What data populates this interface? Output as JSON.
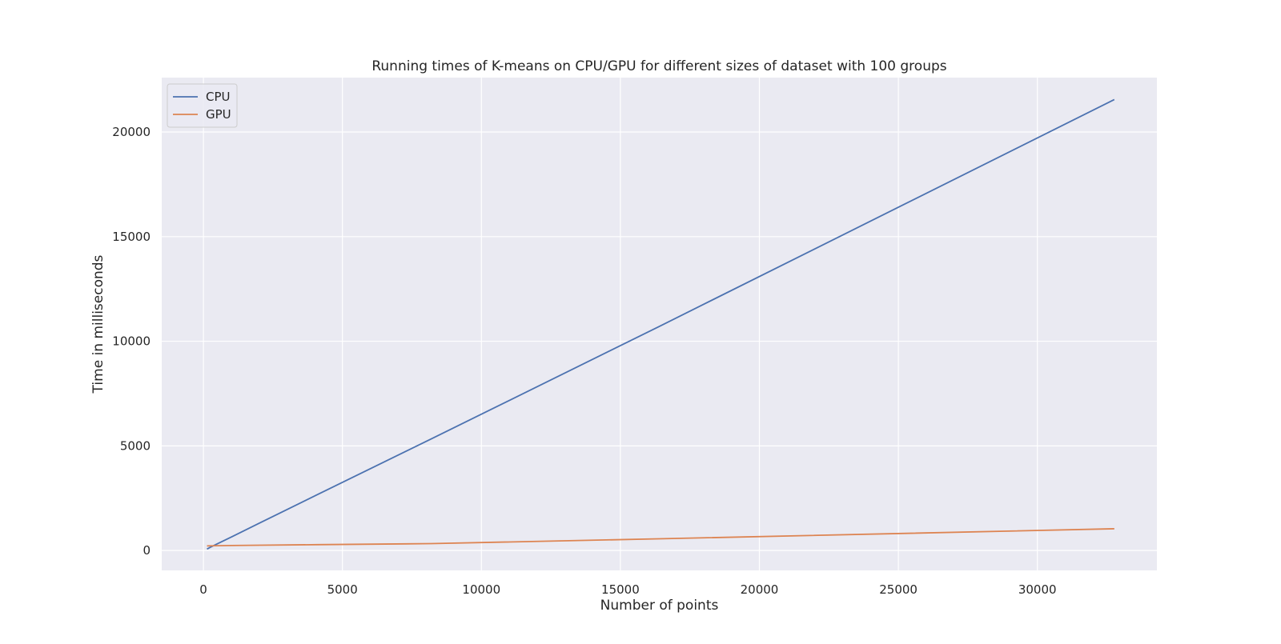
{
  "chart_data": {
    "type": "line",
    "title": "Running times of K-means on CPU/GPU for different sizes of dataset with 100 groups",
    "xlabel": "Number of points",
    "ylabel": "Time in milliseconds",
    "xlim": [
      -1500,
      34300
    ],
    "ylim": [
      -950,
      22600
    ],
    "xticks": [
      0,
      5000,
      10000,
      15000,
      20000,
      25000,
      30000
    ],
    "yticks": [
      0,
      5000,
      10000,
      15000,
      20000
    ],
    "grid": true,
    "legend_position": "top-left",
    "background": "#eaeaf2",
    "grid_color": "#ffffff",
    "series": [
      {
        "name": "CPU",
        "color": "#4c72b0",
        "x": [
          128,
          256,
          512,
          1024,
          2048,
          4096,
          8192,
          16384,
          32768
        ],
        "y": [
          70,
          160,
          330,
          660,
          1330,
          2670,
          5330,
          10700,
          21550
        ]
      },
      {
        "name": "GPU",
        "color": "#dd8452",
        "x": [
          128,
          256,
          512,
          1024,
          2048,
          4096,
          8192,
          16384,
          32768
        ],
        "y": [
          220,
          225,
          230,
          240,
          255,
          280,
          330,
          560,
          1040
        ]
      }
    ]
  }
}
